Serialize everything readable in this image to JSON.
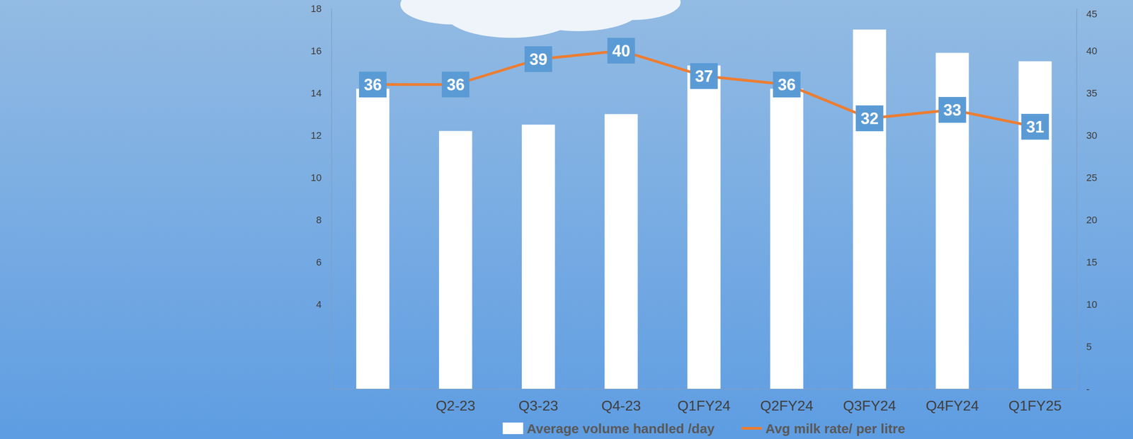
{
  "chart_data": {
    "type": "bar",
    "categories": [
      null,
      "Q2-23",
      "Q3-23",
      "Q4-23",
      "Q1FY24",
      "Q2FY24",
      "Q3FY24",
      "Q4FY24",
      "Q1FY25"
    ],
    "series": [
      {
        "name": "Average volume handled /day",
        "color": "#ffffff",
        "type": "bar",
        "values": [
          14.2,
          12.2,
          12.5,
          13.0,
          15.3,
          14.2,
          17.0,
          15.9,
          15.5
        ]
      },
      {
        "name": "Avg milk rate/ per litre",
        "color": "#ed7d31",
        "type": "line",
        "axis": "y2",
        "data_labels": true,
        "values": [
          36,
          36,
          39,
          40,
          37,
          36,
          32,
          33,
          31
        ]
      }
    ],
    "ylim": [
      0,
      18
    ],
    "yticks": [
      4,
      6,
      8,
      10,
      12,
      14,
      16,
      18
    ],
    "y2lim": [
      0,
      45
    ],
    "y2ticks": [
      {
        "value": 0,
        "label": "-"
      },
      5,
      10,
      15,
      20,
      25,
      30,
      35,
      40,
      45
    ],
    "grid": false,
    "legend": "bottom",
    "data_labels": true
  }
}
